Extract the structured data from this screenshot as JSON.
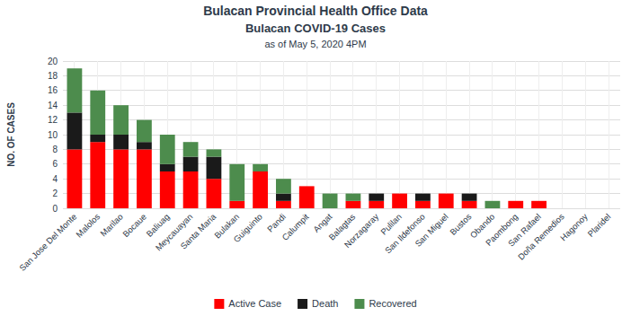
{
  "chart_data": {
    "type": "bar",
    "stacked": true,
    "title": "Bulacan Provincial Health Office Data",
    "subtitle": "Bulacan COVID-19 Cases",
    "annotations": [
      "as of May 5, 2020 4PM"
    ],
    "y_label": "NO. OF CASES",
    "categories": [
      "San Jose Del Monte",
      "Malolos",
      "Marilao",
      "Bocaue",
      "Baliuag",
      "Meycauayan",
      "Santa Maria",
      "Bulakan",
      "Guiguinto",
      "Pandi",
      "Calumpit",
      "Angat",
      "Balagtas",
      "Norzagaray",
      "Pulilan",
      "San Ildefonso",
      "San Miguel",
      "Bustos",
      "Obando",
      "Paombong",
      "San Rafael",
      "Doña Remedios",
      "Hagonoy",
      "Plaridel"
    ],
    "series": [
      {
        "name": "Active Case",
        "color": "#ff0000",
        "values": [
          8,
          9,
          8,
          8,
          5,
          5,
          4,
          1,
          5,
          1,
          3,
          0,
          1,
          1,
          2,
          1,
          2,
          1,
          0,
          1,
          1,
          0,
          0,
          0
        ]
      },
      {
        "name": "Death",
        "color": "#1a1a1a",
        "values": [
          5,
          1,
          2,
          1,
          1,
          2,
          3,
          0,
          0,
          1,
          0,
          0,
          0,
          1,
          0,
          1,
          0,
          1,
          0,
          0,
          0,
          0,
          0,
          0
        ]
      },
      {
        "name": "Recovered",
        "color": "#4d8c4d",
        "values": [
          6,
          6,
          4,
          3,
          4,
          2,
          1,
          5,
          1,
          2,
          0,
          2,
          1,
          0,
          0,
          0,
          0,
          0,
          1,
          0,
          0,
          0,
          0,
          0
        ]
      }
    ],
    "ylim": [
      0,
      20
    ],
    "yticks": [
      0,
      2,
      4,
      6,
      8,
      10,
      12,
      14,
      16,
      18,
      20
    ],
    "grid": true,
    "legend": "bottom"
  }
}
